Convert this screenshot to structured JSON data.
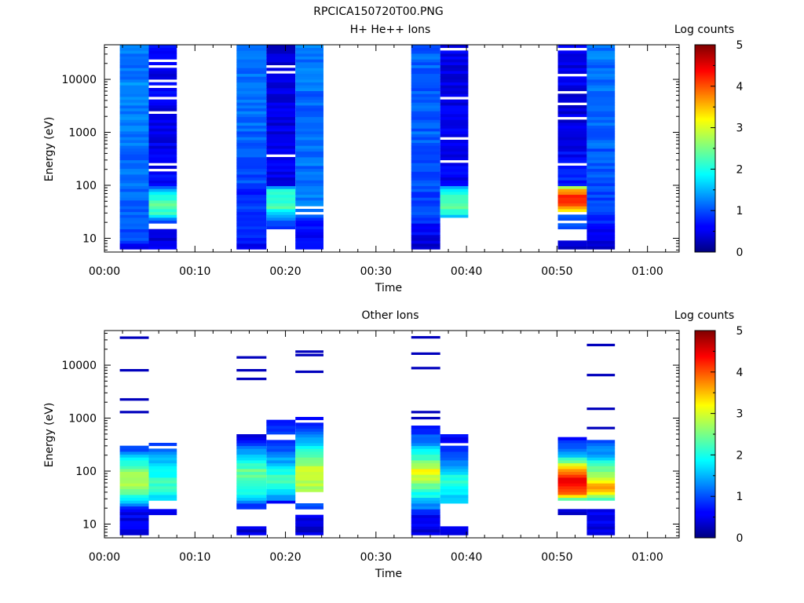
{
  "figure": {
    "title": "RPCICA150720T00.PNG"
  },
  "chart_data": [
    {
      "type": "heatmap",
      "title": "H+ He++ Ions",
      "xlabel": "Time",
      "ylabel": "Energy (eV)",
      "x_ticks": [
        "00:00",
        "00:10",
        "00:20",
        "00:30",
        "00:40",
        "00:50",
        "01:00"
      ],
      "x_tick_minutes": [
        0,
        10,
        20,
        30,
        40,
        50,
        60
      ],
      "xlim_minutes": [
        0,
        63.5
      ],
      "y_scale": "log",
      "y_ticks": [
        "10",
        "100",
        "1000",
        "10000"
      ],
      "y_tick_values": [
        10,
        100,
        1000,
        10000
      ],
      "ylim": [
        5.5,
        45000
      ],
      "colorbar": {
        "label": "Log counts",
        "ticks": [
          "0",
          "1",
          "2",
          "3",
          "4",
          "5"
        ],
        "range": [
          0,
          5
        ],
        "colormap": "jet"
      },
      "grid": false,
      "columns": [
        {
          "t_start": 1.7,
          "t_end": 4.9,
          "profile": [
            [
              6,
              0.3
            ],
            [
              9,
              0.9
            ],
            [
              15,
              1.0
            ],
            [
              30,
              1.1
            ],
            [
              60,
              1.1
            ],
            [
              100,
              1.2
            ],
            [
              300,
              1.1
            ],
            [
              1000,
              1.2
            ],
            [
              5000,
              1.3
            ],
            [
              30000,
              1.2
            ],
            [
              45000,
              1.3
            ]
          ],
          "gaps": [
            [
              6800,
              7300
            ]
          ]
        },
        {
          "t_start": 4.9,
          "t_end": 8.0,
          "profile": [
            [
              6,
              0.5
            ],
            [
              14,
              0.5
            ],
            [
              20,
              0.8
            ],
            [
              28,
              2.0
            ],
            [
              40,
              2.3
            ],
            [
              55,
              2.2
            ],
            [
              80,
              1.6
            ],
            [
              100,
              0.6
            ],
            [
              1000,
              0.5
            ],
            [
              45000,
              0.6
            ]
          ],
          "gaps": [
            [
              14.5,
              20
            ],
            [
              185,
              200
            ],
            [
              240,
              250
            ],
            [
              290,
              305
            ],
            [
              1300,
              1400
            ],
            [
              2300,
              2400
            ],
            [
              3100,
              3300
            ],
            [
              4400,
              4600
            ],
            [
              7200,
              7700
            ],
            [
              9000,
              10200
            ],
            [
              17500,
              18500
            ],
            [
              22500,
              24000
            ],
            [
              27500,
              29000
            ],
            [
              38000,
              40000
            ]
          ]
        },
        {
          "t_start": 14.6,
          "t_end": 17.9,
          "profile": [
            [
              6,
              0.4
            ],
            [
              9,
              0.8
            ],
            [
              30,
              0.9
            ],
            [
              80,
              0.7
            ],
            [
              100,
              1.0
            ],
            [
              1000,
              1.1
            ],
            [
              10000,
              1.2
            ],
            [
              45000,
              1.2
            ]
          ],
          "gaps": []
        },
        {
          "t_start": 17.9,
          "t_end": 21.1,
          "profile": [
            [
              6,
              0.6
            ],
            [
              15,
              0.8
            ],
            [
              25,
              1.2
            ],
            [
              40,
              2.3
            ],
            [
              60,
              2.1
            ],
            [
              90,
              1.8
            ],
            [
              100,
              0.5
            ],
            [
              1000,
              0.5
            ],
            [
              45000,
              0.4
            ]
          ],
          "gaps": [
            [
              6,
              15
            ],
            [
              350,
              370
            ],
            [
              2100,
              2300
            ],
            [
              4100,
              4400
            ],
            [
              10800,
              11300
            ],
            [
              13500,
              14300
            ],
            [
              17500,
              18500
            ]
          ]
        },
        {
          "t_start": 21.1,
          "t_end": 24.2,
          "profile": [
            [
              6,
              0.8
            ],
            [
              15,
              0.6
            ],
            [
              40,
              1.3
            ],
            [
              100,
              1.2
            ],
            [
              1000,
              1.1
            ],
            [
              45000,
              1.2
            ]
          ],
          "gaps": [
            [
              28,
              31
            ],
            [
              37,
              39
            ]
          ]
        },
        {
          "t_start": 33.9,
          "t_end": 37.1,
          "profile": [
            [
              6,
              0.4
            ],
            [
              15,
              0.6
            ],
            [
              25,
              0.9
            ],
            [
              100,
              1.0
            ],
            [
              1000,
              1.1
            ],
            [
              45000,
              1.1
            ]
          ],
          "gaps": []
        },
        {
          "t_start": 37.1,
          "t_end": 40.2,
          "profile": [
            [
              25,
              1.2
            ],
            [
              30,
              2.0
            ],
            [
              45,
              2.4
            ],
            [
              60,
              2.2
            ],
            [
              90,
              1.7
            ],
            [
              100,
              0.6
            ],
            [
              1000,
              0.5
            ],
            [
              45000,
              0.5
            ]
          ],
          "gaps": [
            [
              6,
              25
            ],
            [
              270,
              290
            ],
            [
              440,
              460
            ],
            [
              740,
              790
            ],
            [
              1700,
              1800
            ],
            [
              2500,
              2650
            ],
            [
              3100,
              3250
            ],
            [
              4300,
              4550
            ],
            [
              11000,
              11800
            ],
            [
              23000,
              24500
            ],
            [
              37000,
              40000
            ]
          ]
        },
        {
          "t_start": 50.1,
          "t_end": 53.3,
          "profile": [
            [
              6,
              0.3
            ],
            [
              16,
              1.0
            ],
            [
              28,
              1.0
            ],
            [
              33,
              3.1
            ],
            [
              45,
              4.0
            ],
            [
              60,
              4.3
            ],
            [
              90,
              3.3
            ],
            [
              100,
              0.8
            ],
            [
              1000,
              0.5
            ],
            [
              45000,
              0.5
            ]
          ],
          "gaps": [
            [
              9,
              15
            ],
            [
              19.5,
              21.5
            ],
            [
              27,
              30
            ],
            [
              240,
              265
            ],
            [
              490,
              520
            ],
            [
              700,
              760
            ],
            [
              1800,
              2000
            ],
            [
              3400,
              3700
            ],
            [
              5400,
              5800
            ],
            [
              11500,
              12300
            ],
            [
              35000,
              38000
            ]
          ]
        },
        {
          "t_start": 53.3,
          "t_end": 56.4,
          "profile": [
            [
              6,
              0.3
            ],
            [
              9,
              0.5
            ],
            [
              30,
              0.9
            ],
            [
              100,
              1.0
            ],
            [
              1000,
              1.1
            ],
            [
              45000,
              1.2
            ]
          ],
          "gaps": []
        }
      ]
    },
    {
      "type": "heatmap",
      "title": "Other Ions",
      "xlabel": "Time",
      "ylabel": "Energy (eV)",
      "x_ticks": [
        "00:00",
        "00:10",
        "00:20",
        "00:30",
        "00:40",
        "00:50",
        "01:00"
      ],
      "x_tick_minutes": [
        0,
        10,
        20,
        30,
        40,
        50,
        60
      ],
      "xlim_minutes": [
        0,
        63.5
      ],
      "y_scale": "log",
      "y_ticks": [
        "10",
        "100",
        "1000",
        "10000"
      ],
      "y_tick_values": [
        10,
        100,
        1000,
        10000
      ],
      "ylim": [
        5.5,
        45000
      ],
      "colorbar": {
        "label": "Log counts",
        "ticks": [
          "0",
          "1",
          "2",
          "3",
          "4",
          "5"
        ],
        "range": [
          0,
          5
        ],
        "colormap": "jet"
      },
      "grid": false,
      "columns": [
        {
          "t_start": 1.7,
          "t_end": 4.9,
          "profile": [
            [
              6,
              0.4
            ],
            [
              20,
              0.6
            ],
            [
              28,
              1.8
            ],
            [
              60,
              2.8
            ],
            [
              100,
              2.5
            ],
            [
              200,
              1.5
            ],
            [
              320,
              0.6
            ]
          ],
          "gaps": [],
          "lines": [
            1300,
            2250,
            8000,
            33000
          ]
        },
        {
          "t_start": 4.9,
          "t_end": 8.0,
          "profile": [
            [
              15,
              0.4
            ],
            [
              20,
              0.7
            ],
            [
              28,
              1.7
            ],
            [
              60,
              2.2
            ],
            [
              200,
              1.5
            ],
            [
              350,
              0.8
            ]
          ],
          "gaps": [
            [
              20,
              27
            ],
            [
              280,
              300
            ]
          ],
          "lines": []
        },
        {
          "t_start": 14.6,
          "t_end": 17.9,
          "profile": [
            [
              6,
              0.4
            ],
            [
              9,
              0.5
            ],
            [
              20,
              0.7
            ],
            [
              40,
              2.0
            ],
            [
              100,
              2.4
            ],
            [
              300,
              1.0
            ],
            [
              500,
              0.5
            ]
          ],
          "gaps": [
            [
              9.5,
              20
            ],
            [
              440,
              460
            ]
          ],
          "lines": [
            5500,
            8000,
            14000
          ]
        },
        {
          "t_start": 17.9,
          "t_end": 21.1,
          "profile": [
            [
              25,
              0.5
            ],
            [
              30,
              1.3
            ],
            [
              60,
              2.2
            ],
            [
              100,
              2.0
            ],
            [
              200,
              1.2
            ],
            [
              400,
              0.6
            ],
            [
              500,
              0.9
            ],
            [
              900,
              0.6
            ]
          ],
          "gaps": [
            [
              390,
              500
            ]
          ],
          "lines": []
        },
        {
          "t_start": 21.1,
          "t_end": 24.2,
          "profile": [
            [
              6,
              0.4
            ],
            [
              15,
              0.6
            ],
            [
              25,
              1.3
            ],
            [
              40,
              2.6
            ],
            [
              100,
              3.0
            ],
            [
              200,
              2.3
            ],
            [
              500,
              1.2
            ],
            [
              1000,
              0.6
            ]
          ],
          "gaps": [
            [
              15,
              20
            ],
            [
              25,
              40
            ],
            [
              700,
              740
            ],
            [
              800,
              900
            ]
          ],
          "lines": [
            7500,
            15500,
            18000
          ]
        },
        {
          "t_start": 33.9,
          "t_end": 37.1,
          "profile": [
            [
              6,
              0.4
            ],
            [
              14,
              0.6
            ],
            [
              25,
              1.5
            ],
            [
              60,
              2.6
            ],
            [
              100,
              3.1
            ],
            [
              300,
              1.5
            ],
            [
              700,
              0.6
            ]
          ],
          "gaps": [
            [
              700,
              760
            ],
            [
              880,
              920
            ]
          ],
          "lines": [
            1000,
            1300,
            8800,
            16500,
            33500
          ]
        },
        {
          "t_start": 37.1,
          "t_end": 40.2,
          "profile": [
            [
              6,
              0.4
            ],
            [
              9,
              0.5
            ],
            [
              28,
              1.6
            ],
            [
              60,
              2.2
            ],
            [
              100,
              1.8
            ],
            [
              200,
              0.9
            ],
            [
              500,
              0.6
            ]
          ],
          "gaps": [
            [
              9.5,
              25
            ],
            [
              300,
              340
            ],
            [
              370,
              400
            ]
          ],
          "lines": []
        },
        {
          "t_start": 50.1,
          "t_end": 53.3,
          "profile": [
            [
              15,
              0.4
            ],
            [
              20,
              0.6
            ],
            [
              30,
              2.5
            ],
            [
              40,
              4.0
            ],
            [
              60,
              4.6
            ],
            [
              100,
              3.8
            ],
            [
              200,
              1.5
            ],
            [
              450,
              0.7
            ]
          ],
          "gaps": [
            [
              6,
              15
            ],
            [
              20,
              28
            ]
          ],
          "lines": []
        },
        {
          "t_start": 53.3,
          "t_end": 56.4,
          "profile": [
            [
              6,
              0.4
            ],
            [
              20,
              0.6
            ],
            [
              30,
              2.2
            ],
            [
              45,
              3.7
            ],
            [
              60,
              3.3
            ],
            [
              100,
              2.5
            ],
            [
              200,
              1.5
            ],
            [
              400,
              0.8
            ]
          ],
          "gaps": [
            [
              20,
              28
            ],
            [
              420,
              600
            ]
          ],
          "lines": [
            650,
            1500,
            6500,
            24000
          ]
        }
      ]
    }
  ]
}
